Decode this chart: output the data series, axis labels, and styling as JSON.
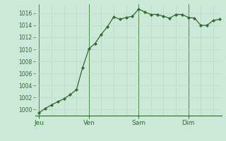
{
  "background_color": "#cce8d8",
  "plot_bg_color": "#cce8d8",
  "line_color": "#2d6a2d",
  "marker_color": "#2d6a2d",
  "grid_color_minor": "#b8d8c8",
  "grid_color_major": "#4a8a4a",
  "axis_label_color": "#2d6a2d",
  "ylim": [
    999,
    1017.5
  ],
  "yticks": [
    1000,
    1002,
    1004,
    1006,
    1008,
    1010,
    1012,
    1014,
    1016
  ],
  "day_labels": [
    "Jeu",
    "Ven",
    "Sam",
    "Dim"
  ],
  "day_positions": [
    0,
    24,
    48,
    72
  ],
  "xlim": [
    -2,
    88
  ],
  "x_values": [
    0,
    3,
    6,
    9,
    12,
    15,
    18,
    21,
    24,
    27,
    30,
    33,
    36,
    39,
    42,
    45,
    48,
    51,
    54,
    57,
    60,
    63,
    66,
    69,
    72,
    75,
    78,
    81,
    84,
    87
  ],
  "y_values": [
    999.5,
    1000.2,
    1000.8,
    1001.3,
    1001.8,
    1002.5,
    1003.3,
    1007.0,
    1010.1,
    1011.0,
    1012.5,
    1013.8,
    1015.4,
    1015.0,
    1015.3,
    1015.5,
    1016.7,
    1016.2,
    1015.8,
    1015.8,
    1015.5,
    1015.2,
    1015.8,
    1015.8,
    1015.3,
    1015.2,
    1014.0,
    1014.0,
    1014.8,
    1015.0
  ]
}
